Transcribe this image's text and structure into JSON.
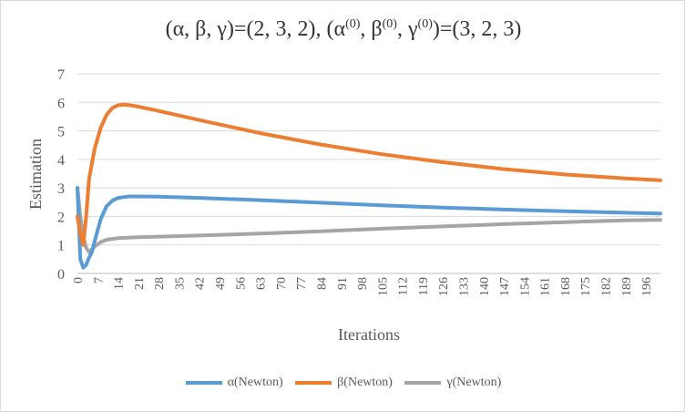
{
  "chart_data": {
    "type": "line",
    "title": "(α, β, γ)=(2, 3, 2), (α(0), β(0), γ(0))=(3, 2, 3)",
    "title_parts": {
      "prefix": "(α, β, γ)=(2, 3, 2), (α",
      "sup1": "(0)",
      "mid1": ", β",
      "sup2": "(0)",
      "mid2": ", γ",
      "sup3": "(0)",
      "suffix": ")=(3, 2, 3)"
    },
    "xlabel": "Iterations",
    "ylabel": "Estimation",
    "ylim": [
      0,
      7
    ],
    "yticks": [
      0,
      1,
      2,
      3,
      4,
      5,
      6,
      7
    ],
    "xlim": [
      0,
      201
    ],
    "xticks": [
      0,
      7,
      14,
      21,
      28,
      35,
      42,
      49,
      56,
      63,
      70,
      77,
      84,
      91,
      98,
      105,
      112,
      119,
      126,
      133,
      140,
      147,
      154,
      161,
      168,
      175,
      182,
      189,
      196
    ],
    "xtick_labels": [
      "0",
      "7",
      "14",
      "21",
      "28",
      "35",
      "42",
      "49",
      "56",
      "63",
      "70",
      "77",
      "84",
      "91",
      "98",
      "105",
      "112",
      "119",
      "126",
      "133",
      "140",
      "147",
      "154",
      "161",
      "168",
      "175",
      "182",
      "189",
      "196"
    ],
    "grid": "horizontal",
    "legend_position": "bottom",
    "series": [
      {
        "name": "α(Newton)",
        "color": "#5B9BD5",
        "x": [
          0,
          1,
          2,
          3,
          4,
          5,
          6,
          8,
          10,
          12,
          14,
          16,
          18,
          21,
          28,
          42,
          63,
          84,
          105,
          126,
          147,
          168,
          189,
          201
        ],
        "values": [
          3.0,
          0.5,
          0.2,
          0.3,
          0.55,
          0.75,
          1.15,
          1.9,
          2.35,
          2.55,
          2.65,
          2.68,
          2.7,
          2.7,
          2.69,
          2.65,
          2.57,
          2.48,
          2.39,
          2.31,
          2.24,
          2.18,
          2.13,
          2.1
        ]
      },
      {
        "name": "β(Newton)",
        "color": "#ED7D31",
        "x": [
          0,
          1,
          2,
          3,
          4,
          6,
          8,
          10,
          12,
          14,
          16,
          18,
          21,
          28,
          42,
          63,
          84,
          105,
          126,
          147,
          168,
          189,
          201
        ],
        "values": [
          2.0,
          1.4,
          1.0,
          2.0,
          3.3,
          4.4,
          5.1,
          5.55,
          5.8,
          5.9,
          5.92,
          5.9,
          5.85,
          5.7,
          5.38,
          4.92,
          4.52,
          4.18,
          3.9,
          3.66,
          3.47,
          3.33,
          3.27
        ]
      },
      {
        "name": "γ(Newton)",
        "color": "#A5A5A5",
        "x": [
          0,
          1,
          2,
          3,
          4,
          6,
          8,
          10,
          14,
          21,
          42,
          63,
          84,
          105,
          126,
          147,
          168,
          189,
          201
        ],
        "values": [
          3.0,
          2.0,
          1.3,
          0.9,
          0.75,
          0.95,
          1.1,
          1.18,
          1.24,
          1.27,
          1.33,
          1.4,
          1.48,
          1.57,
          1.65,
          1.73,
          1.8,
          1.86,
          1.88
        ]
      }
    ]
  }
}
